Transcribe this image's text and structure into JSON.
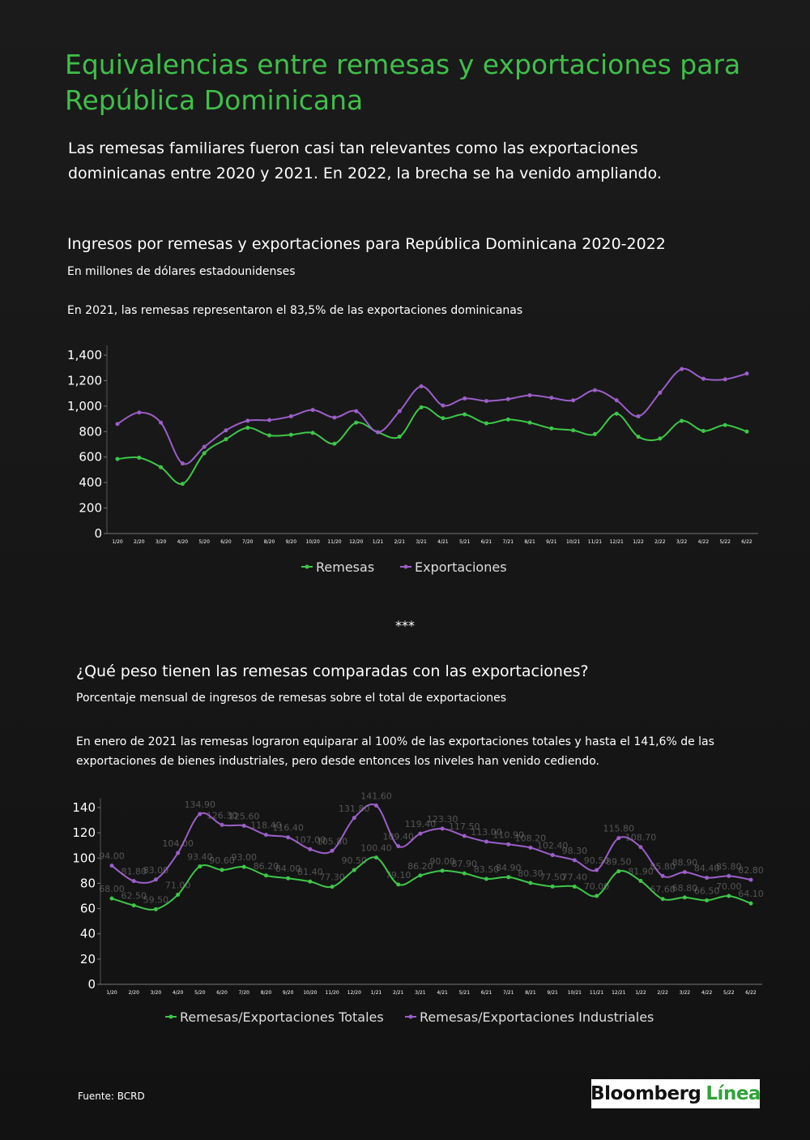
{
  "title": "Equivalencias entre remesas y exportaciones para República Dominicana",
  "intro": "Las remesas familiares fueron casi tan relevantes como las exportaciones dominicanas entre 2020 y 2021. En 2022, la brecha se ha venido ampliando.",
  "separator": "***",
  "source": "Fuente: BCRD",
  "logo": {
    "brand": "Bloomberg",
    "product": "Línea"
  },
  "chart_data": [
    {
      "type": "line",
      "title": "Ingresos por remesas y exportaciones para República Dominicana 2020-2022",
      "subtitle": "En millones de dólares estadounidenses",
      "annotation": "En 2021, las remesas representaron el 83,5% de las exportaciones dominicanas",
      "categories": [
        "1/20",
        "2/20",
        "3/20",
        "4/20",
        "5/20",
        "6/20",
        "7/20",
        "8/20",
        "9/20",
        "10/20",
        "11/20",
        "12/20",
        "1/21",
        "2/21",
        "3/21",
        "4/21",
        "5/21",
        "6/21",
        "7/21",
        "8/21",
        "9/21",
        "10/21",
        "11/21",
        "12/21",
        "1/22",
        "2/22",
        "3/22",
        "4/22",
        "5/22",
        "6/22"
      ],
      "series": [
        {
          "name": "Remesas",
          "color": "#3fc64a",
          "values": [
            585,
            595,
            520,
            390,
            630,
            740,
            830,
            770,
            775,
            790,
            705,
            870,
            795,
            760,
            990,
            905,
            935,
            865,
            895,
            870,
            825,
            810,
            780,
            940,
            760,
            745,
            884.1,
            805,
            851.2,
            800
          ]
        },
        {
          "name": "Exportaciones",
          "color": "#9b5fc8",
          "values": [
            860,
            950,
            870,
            550,
            680,
            810,
            885,
            890,
            920,
            970,
            910,
            960,
            795,
            960,
            1155,
            1005,
            1060,
            1040,
            1055,
            1085,
            1065,
            1045,
            1125,
            1045,
            920,
            1105,
            1290.7,
            1215,
            1210,
            1255
          ]
        }
      ],
      "ylim": [
        0,
        1400
      ],
      "yticks": [
        0,
        200,
        400,
        600,
        800,
        {
          "value": 1000,
          "label": "1,000"
        },
        {
          "value": 1200,
          "label": "1,200"
        },
        {
          "value": 1400,
          "label": "1,400"
        }
      ]
    },
    {
      "type": "line",
      "title": "¿Qué peso tienen las remesas comparadas con las exportaciones?",
      "subtitle": "Porcentaje mensual de ingresos de remesas sobre el total de exportaciones",
      "annotation": "En enero de 2021 las remesas lograron equiparar al 100% de las exportaciones totales y hasta el 141,6% de las exportaciones de bienes industriales, pero desde entonces los niveles han venido cediendo.",
      "categories": [
        "1/20",
        "2/20",
        "3/20",
        "4/20",
        "5/20",
        "6/20",
        "7/20",
        "8/20",
        "9/20",
        "10/20",
        "11/20",
        "12/20",
        "1/21",
        "2/21",
        "3/21",
        "4/21",
        "5/21",
        "6/21",
        "7/21",
        "8/21",
        "9/21",
        "10/21",
        "11/21",
        "12/21",
        "1/22",
        "2/22",
        "3/22",
        "4/22",
        "5/22",
        "6/22"
      ],
      "series": [
        {
          "name": "Remesas/Exportaciones Totales",
          "color": "#3fc64a",
          "values": [
            68,
            62.5,
            59.5,
            71,
            93.4,
            90.6,
            93,
            86.2,
            84,
            81.4,
            77.3,
            90.5,
            100.4,
            79.1,
            86.2,
            90,
            87.9,
            83.5,
            84.9,
            80.3,
            77.5,
            77.4,
            70,
            89.5,
            81.9,
            67.6,
            68.8,
            66.5,
            70,
            64.1
          ],
          "value_labels": [
            "68.00",
            "62.50",
            "59.50",
            "71.00",
            "93.40",
            "90.60",
            "93.00",
            "86.20",
            "84.00",
            "81.40",
            "77.30",
            "90.50",
            "100.40",
            "79.10",
            "86.20",
            "90.00",
            "87.90",
            "83.50",
            "84.90",
            "80.30",
            "77.50",
            "77.40",
            "70.00",
            "89.50",
            "81.90",
            "67.60",
            "68.80",
            "66.50",
            "70.00",
            "64.10"
          ]
        },
        {
          "name": "Remesas/Exportaciones Industriales",
          "color": "#9b5fc8",
          "values": [
            94,
            81.8,
            83,
            104,
            134.9,
            126.3,
            125.6,
            118.4,
            116.4,
            107,
            105.8,
            131.8,
            141.6,
            109.4,
            119.4,
            123.3,
            117.5,
            113,
            110.9,
            108.2,
            102.4,
            98.3,
            90.5,
            115.8,
            108.7,
            85.8,
            88.9,
            84.4,
            85.8,
            82.8
          ],
          "value_labels": [
            "94.00",
            "81.80",
            "83.00",
            "104.00",
            "134.90",
            "126.30",
            "125.60",
            "118.40",
            "116.40",
            "107.00",
            "105.80",
            "131.80",
            "141.60",
            "109.40",
            "119.40",
            "123.30",
            "117.50",
            "113.00",
            "110.90",
            "108.20",
            "102.40",
            "98.30",
            "90.50",
            "115.80",
            "108.70",
            "85.80",
            "88.90",
            "84.40",
            "85.80",
            "82.80"
          ]
        }
      ],
      "ylim": [
        0,
        140
      ],
      "yticks": [
        0,
        20,
        40,
        60,
        80,
        100,
        120,
        140
      ]
    }
  ]
}
